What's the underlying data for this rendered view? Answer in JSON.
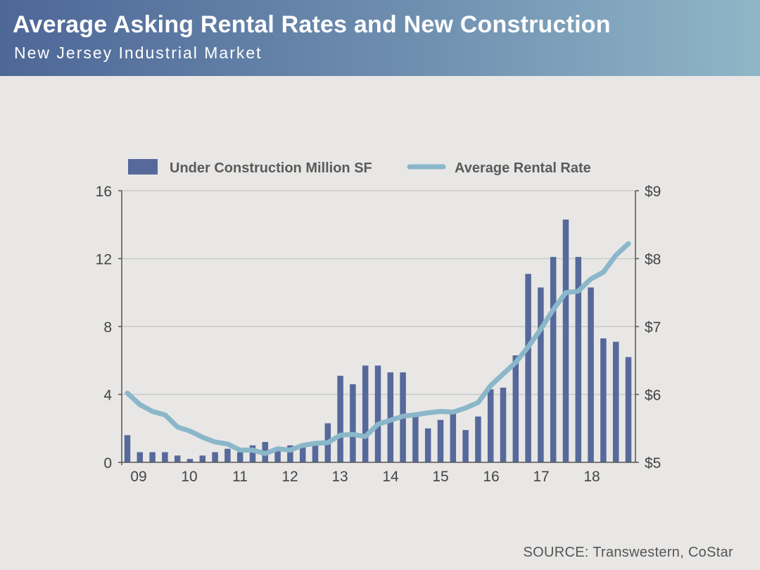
{
  "header": {
    "title": "Average Asking Rental Rates and New Construction",
    "subtitle": "New Jersey Industrial Market"
  },
  "source": "SOURCE: Transwestern, CoStar",
  "colors": {
    "bar": "#56699b",
    "line": "#8ab7c9",
    "grid": "#c9c9c9",
    "axis": "#555555"
  },
  "chart_data": {
    "type": "bar",
    "x_tick_labels": [
      "09",
      "10",
      "11",
      "12",
      "13",
      "14",
      "15",
      "16",
      "17",
      "18"
    ],
    "left_axis": {
      "ylim": [
        0,
        16
      ],
      "ticks": [
        0,
        4,
        8,
        12,
        16
      ],
      "tick_labels": [
        "0",
        "4",
        "8",
        "12",
        "16"
      ]
    },
    "right_axis": {
      "ylim": [
        5,
        9
      ],
      "ticks": [
        5,
        6,
        7,
        8,
        9
      ],
      "tick_labels": [
        "$5",
        "$6",
        "$7",
        "$8",
        "$9"
      ]
    },
    "grid": true,
    "legend_position": "top",
    "series": [
      {
        "name": "Under Construction Million SF",
        "type": "bar",
        "axis": "left",
        "values": [
          1.6,
          0.6,
          0.6,
          0.6,
          0.4,
          0.2,
          0.4,
          0.6,
          0.8,
          0.6,
          1.0,
          1.2,
          0.8,
          1.0,
          1.0,
          1.1,
          2.3,
          5.1,
          4.6,
          5.7,
          5.7,
          5.3,
          5.3,
          2.8,
          2.0,
          2.5,
          2.9,
          1.9,
          2.7,
          4.3,
          4.4,
          6.3,
          11.1,
          10.3,
          12.1,
          14.3,
          12.1,
          10.3,
          7.3,
          7.1,
          6.2
        ]
      },
      {
        "name": "Average Rental Rate",
        "type": "line",
        "axis": "right",
        "values": [
          6.02,
          5.85,
          5.75,
          5.7,
          5.52,
          5.46,
          5.37,
          5.3,
          5.27,
          5.18,
          5.18,
          5.13,
          5.2,
          5.18,
          5.25,
          5.28,
          5.29,
          5.4,
          5.41,
          5.38,
          5.56,
          5.62,
          5.68,
          5.7,
          5.73,
          5.75,
          5.74,
          5.8,
          5.88,
          6.13,
          6.3,
          6.47,
          6.7,
          6.96,
          7.25,
          7.5,
          7.52,
          7.7,
          7.8,
          8.05,
          8.22
        ]
      }
    ]
  }
}
